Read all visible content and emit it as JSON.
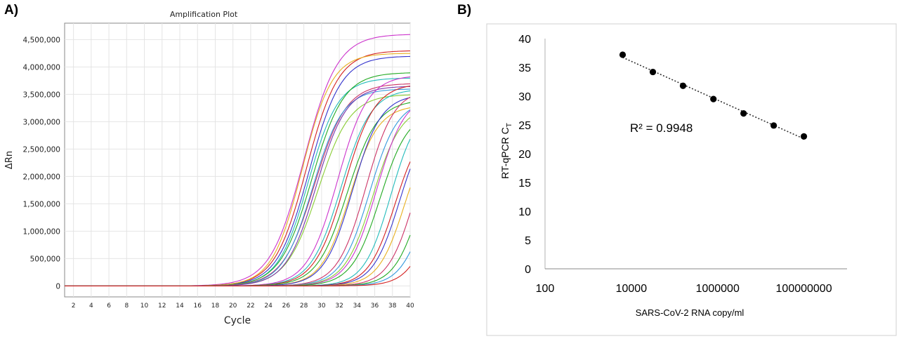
{
  "figure": {
    "panel_a_label": "A)",
    "panel_b_label": "B)"
  },
  "chart_data": [
    {
      "panel": "A)",
      "type": "line",
      "title": "Amplification Plot",
      "xlabel": "Cycle",
      "ylabel": "ΔRn",
      "xlim": [
        1,
        40
      ],
      "ylim": [
        -200000,
        4800000
      ],
      "x_ticks": [
        2,
        4,
        6,
        8,
        10,
        12,
        14,
        16,
        18,
        20,
        22,
        24,
        26,
        28,
        30,
        32,
        34,
        36,
        38,
        40
      ],
      "y_ticks": [
        0,
        500000,
        1000000,
        1500000,
        2000000,
        2500000,
        3000000,
        3500000,
        4000000,
        4500000
      ],
      "y_tick_labels": [
        "0",
        "500,000",
        "1,000,000",
        "1,500,000",
        "2,000,000",
        "2,500,000",
        "3,000,000",
        "3,500,000",
        "4,000,000",
        "4,500,000"
      ],
      "grid": true,
      "legend": "none",
      "curve_model": "sigmoid: deltaRn = plateau / (1 + exp(-(cycle - midpoint) / slope))",
      "series": [
        {
          "color": "#cc33cc",
          "midpoint": 28.0,
          "plateau": 4600000,
          "slope": 1.9
        },
        {
          "color": "#d42020",
          "midpoint": 28.3,
          "plateau": 4300000,
          "slope": 1.8
        },
        {
          "color": "#3333cc",
          "midpoint": 28.6,
          "plateau": 4200000,
          "slope": 1.8
        },
        {
          "color": "#e8b020",
          "midpoint": 27.8,
          "plateau": 4250000,
          "slope": 1.7
        },
        {
          "color": "#22bbbb",
          "midpoint": 28.5,
          "plateau": 3800000,
          "slope": 1.7
        },
        {
          "color": "#22aa22",
          "midpoint": 28.9,
          "plateau": 3900000,
          "slope": 1.8
        },
        {
          "color": "#cc3366",
          "midpoint": 29.2,
          "plateau": 3700000,
          "slope": 1.8
        },
        {
          "color": "#3399dd",
          "midpoint": 29.0,
          "plateau": 3600000,
          "slope": 1.7
        },
        {
          "color": "#88cc33",
          "midpoint": 29.6,
          "plateau": 3500000,
          "slope": 1.8
        },
        {
          "color": "#7733aa",
          "midpoint": 29.4,
          "plateau": 3650000,
          "slope": 1.7
        },
        {
          "color": "#cc33cc",
          "midpoint": 31.8,
          "plateau": 3850000,
          "slope": 1.7
        },
        {
          "color": "#22bbbb",
          "midpoint": 32.2,
          "plateau": 3600000,
          "slope": 1.7
        },
        {
          "color": "#d42020",
          "midpoint": 32.6,
          "plateau": 3700000,
          "slope": 1.7
        },
        {
          "color": "#22aa22",
          "midpoint": 32.9,
          "plateau": 3400000,
          "slope": 1.7
        },
        {
          "color": "#e8b020",
          "midpoint": 33.2,
          "plateau": 3300000,
          "slope": 1.6
        },
        {
          "color": "#3333cc",
          "midpoint": 33.5,
          "plateau": 3500000,
          "slope": 1.6
        },
        {
          "color": "#cc3366",
          "midpoint": 35.0,
          "plateau": 3600000,
          "slope": 1.6
        },
        {
          "color": "#3399dd",
          "midpoint": 35.4,
          "plateau": 3400000,
          "slope": 1.6
        },
        {
          "color": "#88cc33",
          "midpoint": 35.8,
          "plateau": 3300000,
          "slope": 1.6
        },
        {
          "color": "#cc33cc",
          "midpoint": 36.2,
          "plateau": 3500000,
          "slope": 1.6
        },
        {
          "color": "#22aa22",
          "midpoint": 36.6,
          "plateau": 3200000,
          "slope": 1.6
        },
        {
          "color": "#22bbbb",
          "midpoint": 37.8,
          "plateau": 3300000,
          "slope": 1.5
        },
        {
          "color": "#d42020",
          "midpoint": 38.3,
          "plateau": 3000000,
          "slope": 1.5
        },
        {
          "color": "#3333cc",
          "midpoint": 38.8,
          "plateau": 3100000,
          "slope": 1.5
        },
        {
          "color": "#e8b020",
          "midpoint": 39.4,
          "plateau": 3000000,
          "slope": 1.5
        },
        {
          "color": "#cc3366",
          "midpoint": 40.5,
          "plateau": 3200000,
          "slope": 1.5
        },
        {
          "color": "#22aa22",
          "midpoint": 41.2,
          "plateau": 3000000,
          "slope": 1.5
        },
        {
          "color": "#3399dd",
          "midpoint": 42.0,
          "plateau": 3000000,
          "slope": 1.5
        },
        {
          "color": "#d42020",
          "midpoint": 43.0,
          "plateau": 3000000,
          "slope": 1.5
        }
      ]
    },
    {
      "panel": "B)",
      "type": "scatter",
      "title": "",
      "xlabel": "SARS-CoV-2 RNA copy/ml",
      "ylabel": "RT-qPCR C",
      "ylabel_subscript": "T",
      "x_scale": "log",
      "xlim": [
        100,
        1000000000
      ],
      "ylim": [
        0,
        40
      ],
      "x_ticks": [
        100,
        10000,
        1000000,
        100000000
      ],
      "x_tick_labels": [
        "100",
        "10000",
        "1000000",
        "100000000"
      ],
      "y_ticks": [
        0,
        5,
        10,
        15,
        20,
        25,
        30,
        35,
        40
      ],
      "grid": false,
      "legend": "none",
      "annotation": "R² = 0.9948",
      "trendline": "dotted linear",
      "x": [
        6300,
        31600,
        158000,
        800000,
        4000000,
        20000000,
        100000000
      ],
      "y": [
        37.2,
        34.2,
        31.8,
        29.5,
        27.0,
        24.9,
        23.0
      ]
    }
  ]
}
